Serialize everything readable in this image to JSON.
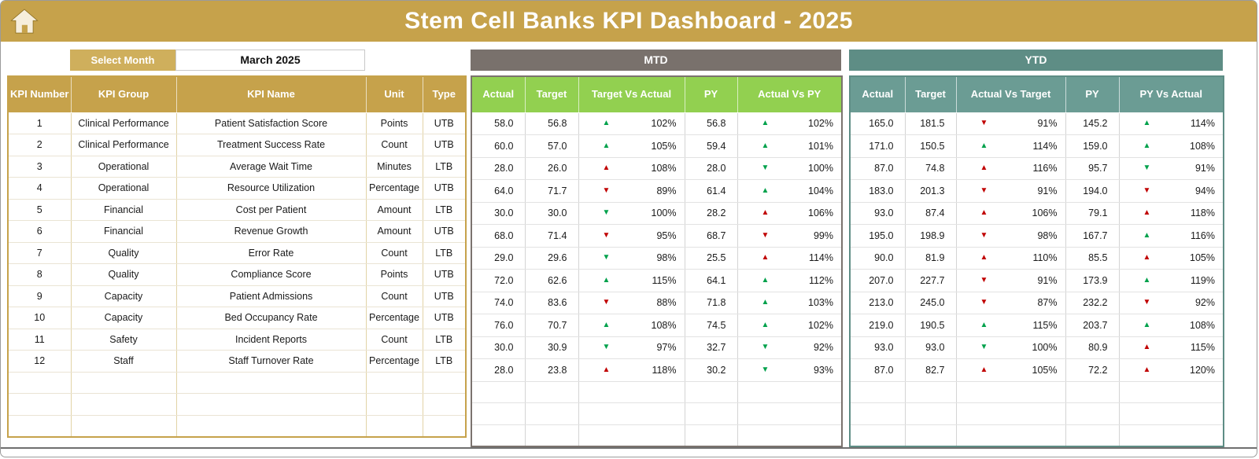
{
  "header": {
    "title": "Stem Cell Banks KPI Dashboard - 2025"
  },
  "controls": {
    "select_month_label": "Select Month",
    "selected_month": "March 2025"
  },
  "sections": {
    "mtd": "MTD",
    "ytd": "YTD"
  },
  "table": {
    "left_headers": [
      "KPI Number",
      "KPI Group",
      "KPI Name",
      "Unit",
      "Type"
    ],
    "mtd_headers": [
      "Actual",
      "Target",
      "Target Vs Actual",
      "PY",
      "Actual Vs PY"
    ],
    "ytd_headers": [
      "Actual",
      "Target",
      "Actual Vs Target",
      "PY",
      "PY Vs Actual"
    ],
    "rows": [
      {
        "n": "1",
        "group": "Clinical Performance",
        "name": "Patient Satisfaction Score",
        "unit": "Points",
        "type": "UTB",
        "mtd": {
          "actual": "58.0",
          "target": "56.8",
          "target_vs_actual": {
            "dir": "up",
            "color": "green",
            "value": "102%"
          },
          "py": "56.8",
          "actual_vs_py": {
            "dir": "up",
            "color": "green",
            "value": "102%"
          }
        },
        "ytd": {
          "actual": "165.0",
          "target": "181.5",
          "actual_vs_target": {
            "dir": "down",
            "color": "red",
            "value": "91%"
          },
          "py": "145.2",
          "py_vs_actual": {
            "dir": "up",
            "color": "green",
            "value": "114%"
          }
        }
      },
      {
        "n": "2",
        "group": "Clinical Performance",
        "name": "Treatment Success Rate",
        "unit": "Count",
        "type": "UTB",
        "mtd": {
          "actual": "60.0",
          "target": "57.0",
          "target_vs_actual": {
            "dir": "up",
            "color": "green",
            "value": "105%"
          },
          "py": "59.4",
          "actual_vs_py": {
            "dir": "up",
            "color": "green",
            "value": "101%"
          }
        },
        "ytd": {
          "actual": "171.0",
          "target": "150.5",
          "actual_vs_target": {
            "dir": "up",
            "color": "green",
            "value": "114%"
          },
          "py": "159.0",
          "py_vs_actual": {
            "dir": "up",
            "color": "green",
            "value": "108%"
          }
        }
      },
      {
        "n": "3",
        "group": "Operational",
        "name": "Average Wait Time",
        "unit": "Minutes",
        "type": "LTB",
        "mtd": {
          "actual": "28.0",
          "target": "26.0",
          "target_vs_actual": {
            "dir": "up",
            "color": "red",
            "value": "108%"
          },
          "py": "28.0",
          "actual_vs_py": {
            "dir": "down",
            "color": "green",
            "value": "100%"
          }
        },
        "ytd": {
          "actual": "87.0",
          "target": "74.8",
          "actual_vs_target": {
            "dir": "up",
            "color": "red",
            "value": "116%"
          },
          "py": "95.7",
          "py_vs_actual": {
            "dir": "down",
            "color": "green",
            "value": "91%"
          }
        }
      },
      {
        "n": "4",
        "group": "Operational",
        "name": "Resource Utilization",
        "unit": "Percentage",
        "type": "UTB",
        "mtd": {
          "actual": "64.0",
          "target": "71.7",
          "target_vs_actual": {
            "dir": "down",
            "color": "red",
            "value": "89%"
          },
          "py": "61.4",
          "actual_vs_py": {
            "dir": "up",
            "color": "green",
            "value": "104%"
          }
        },
        "ytd": {
          "actual": "183.0",
          "target": "201.3",
          "actual_vs_target": {
            "dir": "down",
            "color": "red",
            "value": "91%"
          },
          "py": "194.0",
          "py_vs_actual": {
            "dir": "down",
            "color": "red",
            "value": "94%"
          }
        }
      },
      {
        "n": "5",
        "group": "Financial",
        "name": "Cost per Patient",
        "unit": "Amount",
        "type": "LTB",
        "mtd": {
          "actual": "30.0",
          "target": "30.0",
          "target_vs_actual": {
            "dir": "down",
            "color": "green",
            "value": "100%"
          },
          "py": "28.2",
          "actual_vs_py": {
            "dir": "up",
            "color": "red",
            "value": "106%"
          }
        },
        "ytd": {
          "actual": "93.0",
          "target": "87.4",
          "actual_vs_target": {
            "dir": "up",
            "color": "red",
            "value": "106%"
          },
          "py": "79.1",
          "py_vs_actual": {
            "dir": "up",
            "color": "red",
            "value": "118%"
          }
        }
      },
      {
        "n": "6",
        "group": "Financial",
        "name": "Revenue Growth",
        "unit": "Amount",
        "type": "UTB",
        "mtd": {
          "actual": "68.0",
          "target": "71.4",
          "target_vs_actual": {
            "dir": "down",
            "color": "red",
            "value": "95%"
          },
          "py": "68.7",
          "actual_vs_py": {
            "dir": "down",
            "color": "red",
            "value": "99%"
          }
        },
        "ytd": {
          "actual": "195.0",
          "target": "198.9",
          "actual_vs_target": {
            "dir": "down",
            "color": "red",
            "value": "98%"
          },
          "py": "167.7",
          "py_vs_actual": {
            "dir": "up",
            "color": "green",
            "value": "116%"
          }
        }
      },
      {
        "n": "7",
        "group": "Quality",
        "name": "Error Rate",
        "unit": "Count",
        "type": "LTB",
        "mtd": {
          "actual": "29.0",
          "target": "29.6",
          "target_vs_actual": {
            "dir": "down",
            "color": "green",
            "value": "98%"
          },
          "py": "25.5",
          "actual_vs_py": {
            "dir": "up",
            "color": "red",
            "value": "114%"
          }
        },
        "ytd": {
          "actual": "90.0",
          "target": "81.9",
          "actual_vs_target": {
            "dir": "up",
            "color": "red",
            "value": "110%"
          },
          "py": "85.5",
          "py_vs_actual": {
            "dir": "up",
            "color": "red",
            "value": "105%"
          }
        }
      },
      {
        "n": "8",
        "group": "Quality",
        "name": "Compliance Score",
        "unit": "Points",
        "type": "UTB",
        "mtd": {
          "actual": "72.0",
          "target": "62.6",
          "target_vs_actual": {
            "dir": "up",
            "color": "green",
            "value": "115%"
          },
          "py": "64.1",
          "actual_vs_py": {
            "dir": "up",
            "color": "green",
            "value": "112%"
          }
        },
        "ytd": {
          "actual": "207.0",
          "target": "227.7",
          "actual_vs_target": {
            "dir": "down",
            "color": "red",
            "value": "91%"
          },
          "py": "173.9",
          "py_vs_actual": {
            "dir": "up",
            "color": "green",
            "value": "119%"
          }
        }
      },
      {
        "n": "9",
        "group": "Capacity",
        "name": "Patient Admissions",
        "unit": "Count",
        "type": "UTB",
        "mtd": {
          "actual": "74.0",
          "target": "83.6",
          "target_vs_actual": {
            "dir": "down",
            "color": "red",
            "value": "88%"
          },
          "py": "71.8",
          "actual_vs_py": {
            "dir": "up",
            "color": "green",
            "value": "103%"
          }
        },
        "ytd": {
          "actual": "213.0",
          "target": "245.0",
          "actual_vs_target": {
            "dir": "down",
            "color": "red",
            "value": "87%"
          },
          "py": "232.2",
          "py_vs_actual": {
            "dir": "down",
            "color": "red",
            "value": "92%"
          }
        }
      },
      {
        "n": "10",
        "group": "Capacity",
        "name": "Bed Occupancy Rate",
        "unit": "Percentage",
        "type": "UTB",
        "mtd": {
          "actual": "76.0",
          "target": "70.7",
          "target_vs_actual": {
            "dir": "up",
            "color": "green",
            "value": "108%"
          },
          "py": "74.5",
          "actual_vs_py": {
            "dir": "up",
            "color": "green",
            "value": "102%"
          }
        },
        "ytd": {
          "actual": "219.0",
          "target": "190.5",
          "actual_vs_target": {
            "dir": "up",
            "color": "green",
            "value": "115%"
          },
          "py": "203.7",
          "py_vs_actual": {
            "dir": "up",
            "color": "green",
            "value": "108%"
          }
        }
      },
      {
        "n": "11",
        "group": "Safety",
        "name": "Incident Reports",
        "unit": "Count",
        "type": "LTB",
        "mtd": {
          "actual": "30.0",
          "target": "30.9",
          "target_vs_actual": {
            "dir": "down",
            "color": "green",
            "value": "97%"
          },
          "py": "32.7",
          "actual_vs_py": {
            "dir": "down",
            "color": "green",
            "value": "92%"
          }
        },
        "ytd": {
          "actual": "93.0",
          "target": "93.0",
          "actual_vs_target": {
            "dir": "down",
            "color": "green",
            "value": "100%"
          },
          "py": "80.9",
          "py_vs_actual": {
            "dir": "up",
            "color": "red",
            "value": "115%"
          }
        }
      },
      {
        "n": "12",
        "group": "Staff",
        "name": "Staff Turnover Rate",
        "unit": "Percentage",
        "type": "LTB",
        "mtd": {
          "actual": "28.0",
          "target": "23.8",
          "target_vs_actual": {
            "dir": "up",
            "color": "red",
            "value": "118%"
          },
          "py": "30.2",
          "actual_vs_py": {
            "dir": "down",
            "color": "green",
            "value": "93%"
          }
        },
        "ytd": {
          "actual": "87.0",
          "target": "82.7",
          "actual_vs_target": {
            "dir": "up",
            "color": "red",
            "value": "105%"
          },
          "py": "72.2",
          "py_vs_actual": {
            "dir": "up",
            "color": "red",
            "value": "120%"
          }
        }
      }
    ],
    "empty_row_count": 3
  },
  "colors": {
    "gold": "#C6A24B",
    "gold_light": "#CFAF5C",
    "mtd_bar": "#79716C",
    "ytd_bar": "#5E8D85",
    "green_header": "#92D050",
    "teal_header": "#6B9C94",
    "arrow_green": "#00A14B",
    "arrow_red": "#C00000"
  }
}
